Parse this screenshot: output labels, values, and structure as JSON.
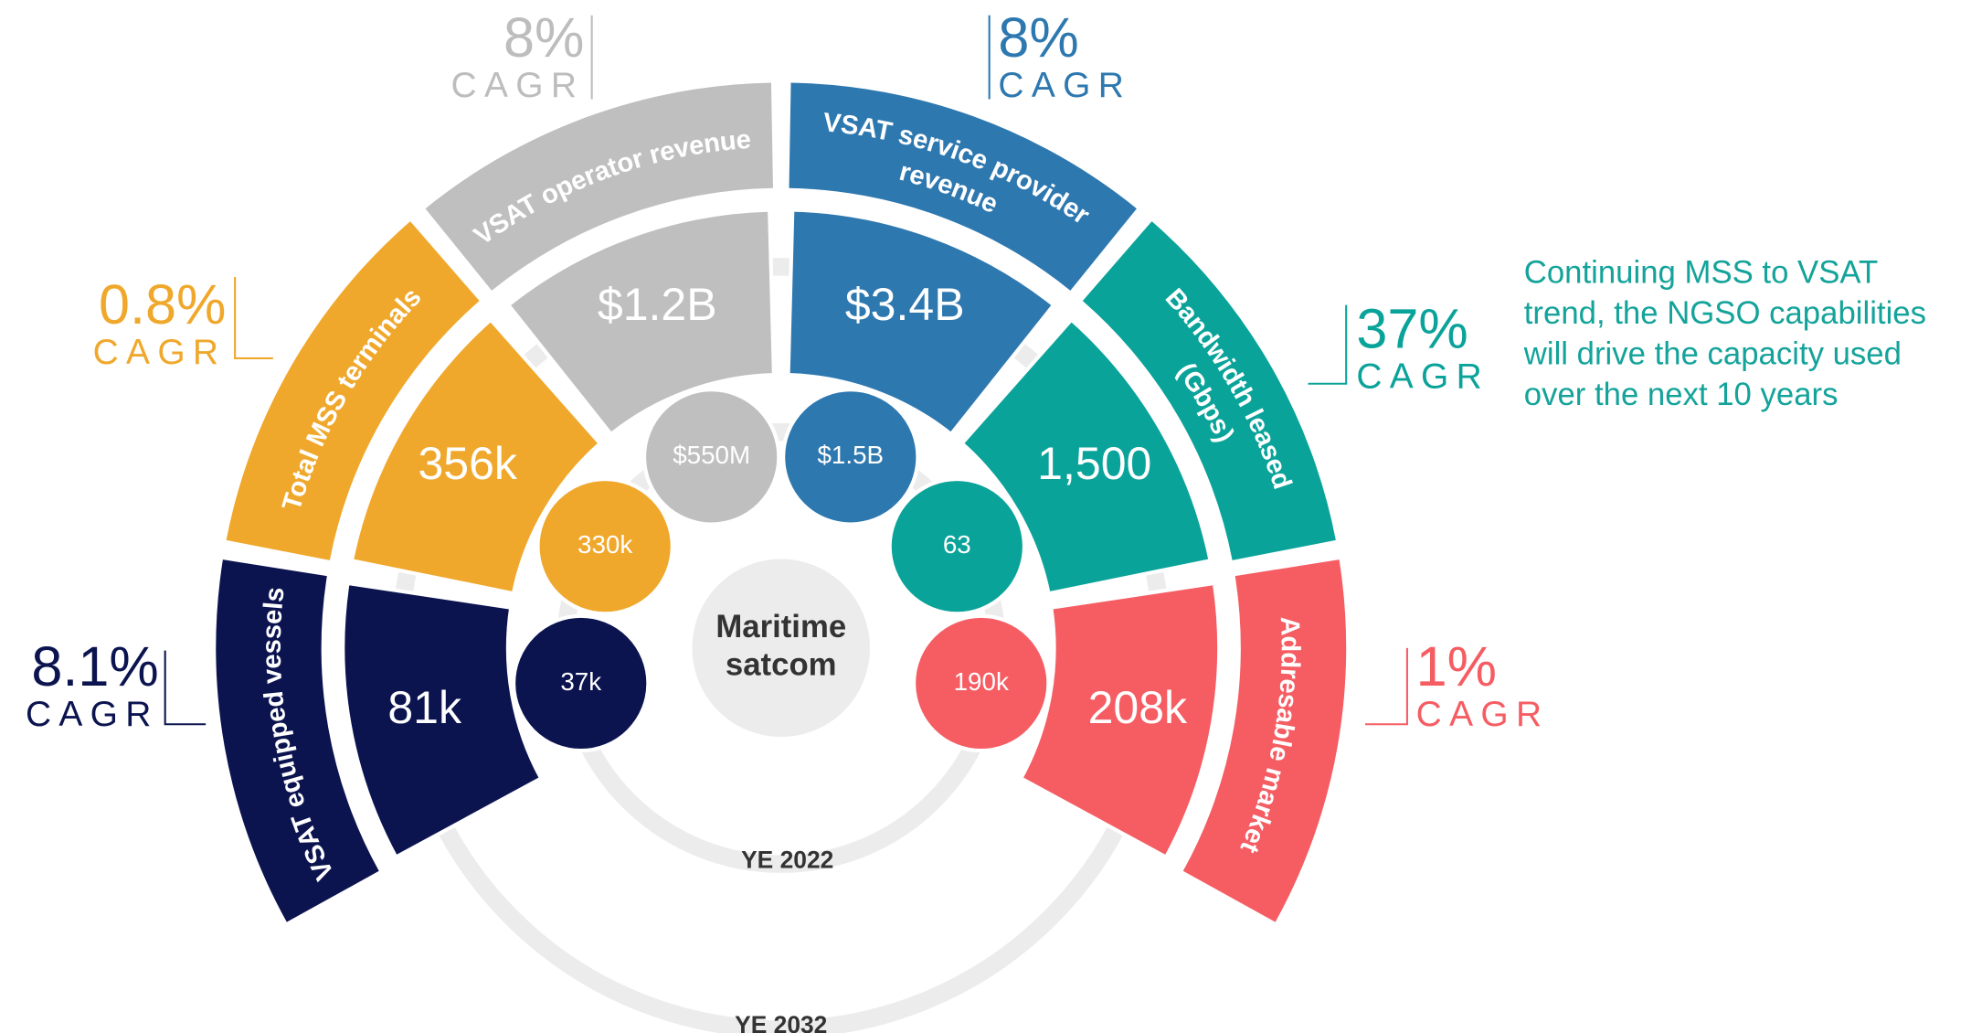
{
  "center": "Maritime satcom",
  "years": [
    "YE 2022",
    "YE 2032"
  ],
  "cagr_unit": "CAGR",
  "note": [
    "Continuing MSS to VSAT",
    "trend, the NGSO capabilities",
    "will drive the capacity used",
    "over the next 10 years"
  ],
  "segments": [
    {
      "label": [
        "VSAT equipped vessels"
      ],
      "value_2032": "81k",
      "value_2022": "37k",
      "cagr": "8.1%",
      "color": "#0c1450",
      "cagr_color": "#0c1450"
    },
    {
      "label": [
        "Total MSS terminals"
      ],
      "value_2032": "356k",
      "value_2022": "330k",
      "cagr": "0.8%",
      "color": "#f0a82c",
      "cagr_color": "#f0a82c"
    },
    {
      "label": [
        "VSAT operator revenue"
      ],
      "value_2032": "$1.2B",
      "value_2022": "$550M",
      "cagr": "8%",
      "color": "#bfbfbf",
      "cagr_color": "#bdbdbd"
    },
    {
      "label": [
        "VSAT service provider",
        "revenue"
      ],
      "value_2032": "$3.4B",
      "value_2022": "$1.5B",
      "cagr": "8%",
      "color": "#2e78b0",
      "cagr_color": "#2e78b0"
    },
    {
      "label": [
        "Bandwidth leased",
        "(Gbps)"
      ],
      "value_2032": "1,500",
      "value_2022": "63",
      "cagr": "37%",
      "color": "#0aa39a",
      "cagr_color": "#0aa39a"
    },
    {
      "label": [
        "Addresable market"
      ],
      "value_2032": "208k",
      "value_2022": "190k",
      "cagr": "1%",
      "color": "#f55d63",
      "cagr_color": "#f55d63"
    }
  ]
}
